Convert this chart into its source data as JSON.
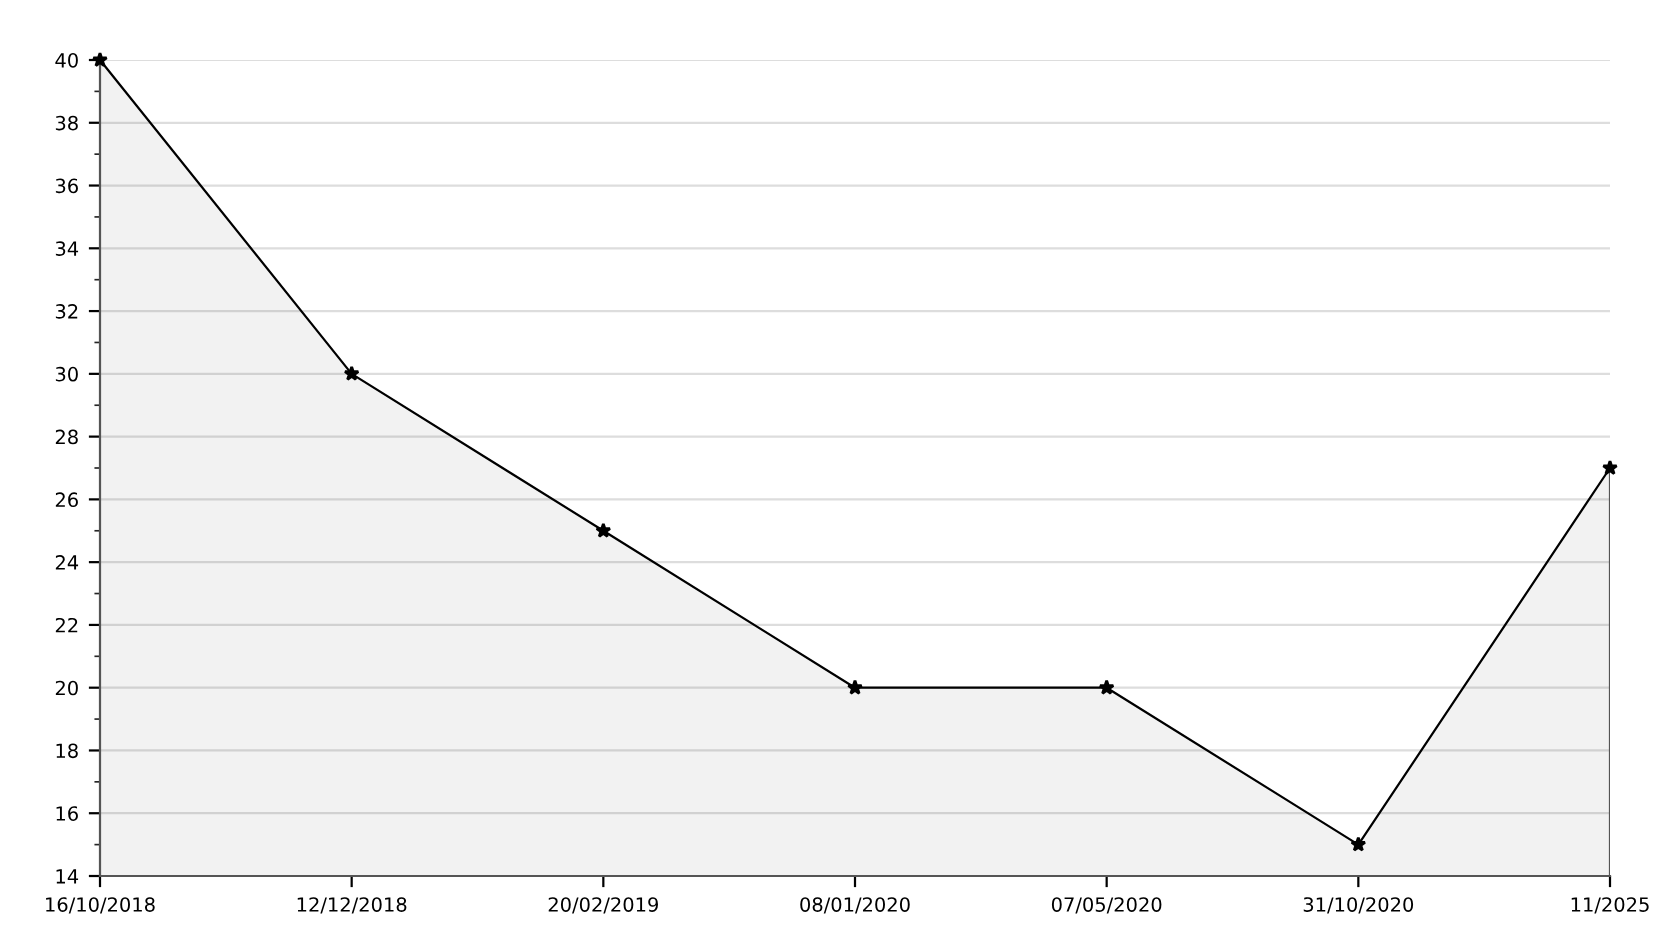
{
  "chart_data": {
    "type": "area",
    "categories": [
      "16/10/2018",
      "12/12/2018",
      "20/02/2019",
      "08/01/2020",
      "07/05/2020",
      "31/10/2020",
      "11/2025"
    ],
    "series": [
      {
        "color": "#000000",
        "values": [
          40,
          30,
          25,
          20,
          20,
          15,
          27
        ]
      }
    ],
    "ylim": [
      14,
      40
    ],
    "yticks": [
      14,
      16,
      18,
      20,
      22,
      24,
      26,
      28,
      30,
      32,
      34,
      36,
      38,
      40
    ],
    "grid": "y",
    "marker": "star",
    "line_style": "solid"
  }
}
